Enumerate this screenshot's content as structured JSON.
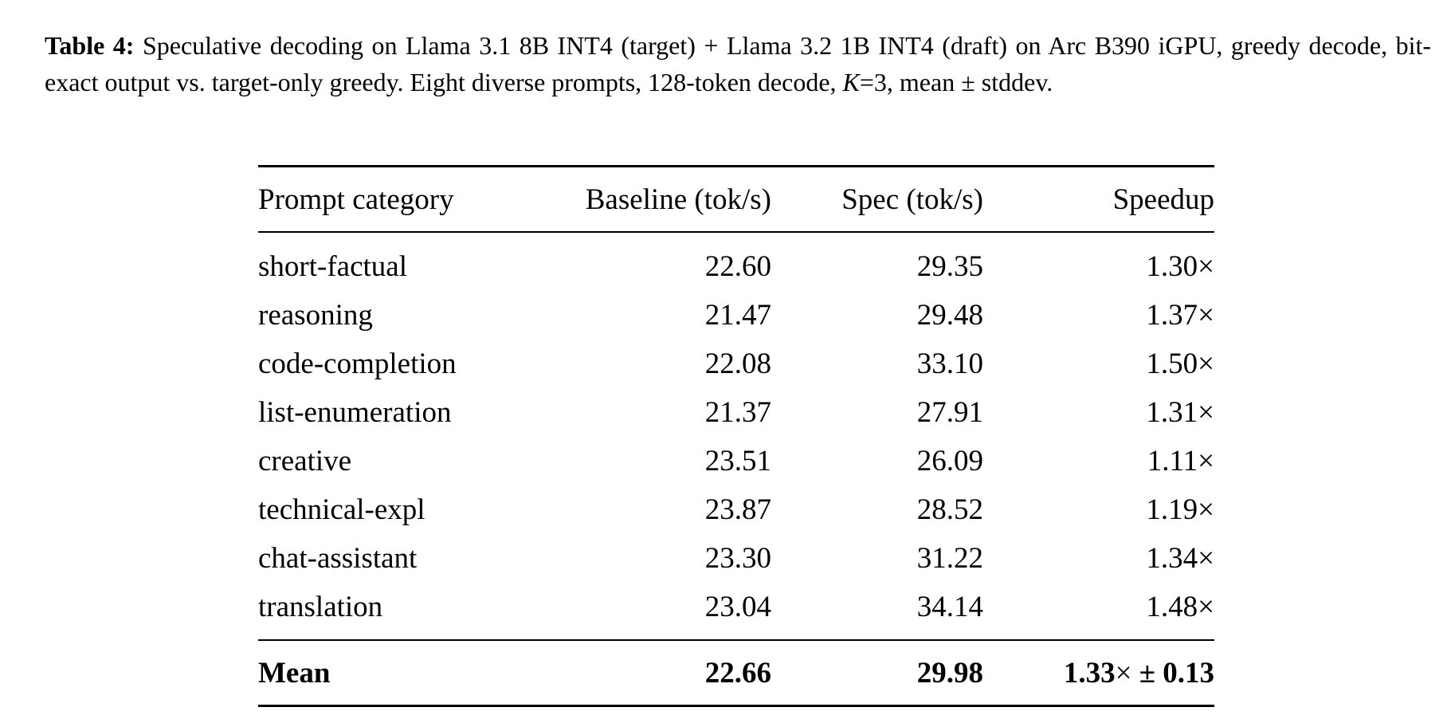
{
  "caption": {
    "label": "Table 4:",
    "text_part1": " Speculative decoding on Llama 3.1 8B INT4 (target) + Llama 3.2 1B INT4 (draft) on Arc B390 iGPU, greedy decode, bit-exact output vs. target-only greedy. Eight diverse prompts, 128-token decode, ",
    "k_symbol": "K",
    "text_part2": "=3, mean ± stddev."
  },
  "table": {
    "headers": {
      "category": "Prompt category",
      "baseline": "Baseline (tok/s)",
      "spec": "Spec (tok/s)",
      "speedup": "Speedup"
    },
    "rows": [
      {
        "category": "short-factual",
        "baseline": "22.60",
        "spec": "29.35",
        "speedup": "1.30×"
      },
      {
        "category": "reasoning",
        "baseline": "21.47",
        "spec": "29.48",
        "speedup": "1.37×"
      },
      {
        "category": "code-completion",
        "baseline": "22.08",
        "spec": "33.10",
        "speedup": "1.50×"
      },
      {
        "category": "list-enumeration",
        "baseline": "21.37",
        "spec": "27.91",
        "speedup": "1.31×"
      },
      {
        "category": "creative",
        "baseline": "23.51",
        "spec": "26.09",
        "speedup": "1.11×"
      },
      {
        "category": "technical-expl",
        "baseline": "23.87",
        "spec": "28.52",
        "speedup": "1.19×"
      },
      {
        "category": "chat-assistant",
        "baseline": "23.30",
        "spec": "31.22",
        "speedup": "1.34×"
      },
      {
        "category": "translation",
        "baseline": "23.04",
        "spec": "34.14",
        "speedup": "1.48×"
      }
    ],
    "mean": {
      "category": "Mean",
      "baseline": "22.66",
      "spec": "29.98",
      "speedup_value": "1.33",
      "speedup_times": "×",
      "speedup_std": " ± 0.13"
    }
  }
}
